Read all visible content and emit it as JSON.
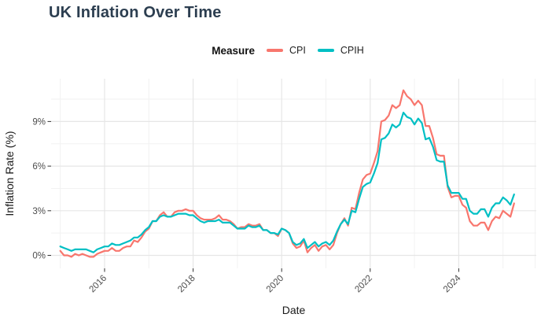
{
  "page": {
    "background": "#FFFFFF"
  },
  "title": {
    "text": "UK Inflation Over Time",
    "color": "#2C3E50"
  },
  "legend": {
    "title": "Measure",
    "position": "top",
    "items": [
      {
        "label": "CPI",
        "color": "#F8766D"
      },
      {
        "label": "CPIH",
        "color": "#00BFC4"
      }
    ]
  },
  "axes": {
    "tick_color": "#333333",
    "tick_label_color": "#4D4D4D",
    "axis_title_color": "#1A1A1A",
    "grid_major_color": "#E6E6E6",
    "grid_minor_color": "#F2F2F2"
  },
  "chart_data": {
    "type": "line",
    "title": "UK Inflation Over Time",
    "xlabel": "Date",
    "ylabel": "Inflation Rate (%)",
    "x_start": "2015-01",
    "x_interval": "monthly",
    "x_end": "2025-04",
    "x_ticks": {
      "major": [
        2016,
        2018,
        2020,
        2022,
        2024
      ],
      "minor": [
        2015,
        2017,
        2019,
        2021,
        2023,
        2025
      ]
    },
    "y_ticks": {
      "major": [
        0,
        3,
        6,
        9
      ],
      "minor": [
        1.5,
        4.5,
        7.5,
        10.5
      ],
      "labels": [
        "0%",
        "3%",
        "6%",
        "9%"
      ]
    },
    "ylim": [
      -0.8,
      11.9
    ],
    "grid": true,
    "legend_position": "top",
    "series": [
      {
        "name": "CPI",
        "color": "#F8766D",
        "values": [
          0.3,
          0.0,
          0.0,
          -0.1,
          0.1,
          0.0,
          0.1,
          0.0,
          -0.1,
          -0.1,
          0.1,
          0.2,
          0.3,
          0.3,
          0.5,
          0.3,
          0.3,
          0.5,
          0.6,
          0.6,
          1.0,
          0.9,
          1.2,
          1.6,
          1.8,
          2.3,
          2.3,
          2.7,
          2.9,
          2.6,
          2.6,
          2.9,
          3.0,
          3.0,
          3.1,
          3.0,
          3.0,
          2.7,
          2.5,
          2.4,
          2.4,
          2.4,
          2.5,
          2.7,
          2.4,
          2.4,
          2.3,
          2.1,
          1.8,
          1.9,
          1.9,
          2.1,
          2.0,
          2.0,
          2.1,
          1.7,
          1.7,
          1.5,
          1.5,
          1.3,
          1.8,
          1.7,
          1.5,
          0.8,
          0.5,
          0.6,
          1.0,
          0.2,
          0.5,
          0.7,
          0.3,
          0.6,
          0.7,
          0.4,
          0.7,
          1.5,
          2.1,
          2.5,
          2.0,
          3.2,
          3.1,
          4.2,
          5.1,
          5.4,
          5.5,
          6.2,
          7.0,
          9.0,
          9.1,
          9.4,
          10.1,
          9.9,
          10.1,
          11.1,
          10.7,
          10.5,
          10.1,
          10.4,
          10.1,
          8.7,
          8.7,
          7.9,
          6.8,
          6.7,
          6.7,
          4.6,
          3.9,
          4.0,
          4.0,
          3.4,
          3.2,
          2.3,
          2.0,
          2.0,
          2.2,
          2.2,
          1.7,
          2.3,
          2.6,
          2.5,
          3.0,
          2.8,
          2.6,
          3.5
        ]
      },
      {
        "name": "CPIH",
        "color": "#00BFC4",
        "values": [
          0.6,
          0.5,
          0.4,
          0.3,
          0.4,
          0.4,
          0.4,
          0.4,
          0.3,
          0.2,
          0.4,
          0.5,
          0.6,
          0.6,
          0.8,
          0.7,
          0.7,
          0.8,
          0.9,
          1.0,
          1.2,
          1.2,
          1.4,
          1.7,
          1.9,
          2.3,
          2.3,
          2.6,
          2.7,
          2.6,
          2.6,
          2.7,
          2.8,
          2.8,
          2.8,
          2.7,
          2.7,
          2.5,
          2.3,
          2.2,
          2.3,
          2.3,
          2.3,
          2.4,
          2.2,
          2.2,
          2.2,
          2.0,
          1.8,
          1.8,
          1.8,
          2.0,
          1.9,
          1.9,
          2.0,
          1.7,
          1.7,
          1.5,
          1.5,
          1.4,
          1.8,
          1.7,
          1.5,
          0.9,
          0.7,
          0.8,
          1.1,
          0.5,
          0.7,
          0.9,
          0.6,
          0.8,
          0.9,
          0.7,
          1.0,
          1.6,
          2.1,
          2.4,
          2.1,
          3.0,
          2.9,
          3.8,
          4.6,
          4.8,
          4.9,
          5.5,
          6.2,
          7.8,
          7.9,
          8.2,
          8.8,
          8.6,
          8.8,
          9.6,
          9.3,
          9.2,
          8.8,
          9.2,
          8.9,
          7.8,
          7.9,
          7.3,
          6.4,
          6.3,
          6.3,
          4.7,
          4.2,
          4.2,
          4.2,
          3.8,
          3.8,
          3.0,
          2.8,
          2.8,
          3.1,
          3.1,
          2.6,
          3.2,
          3.5,
          3.5,
          3.9,
          3.7,
          3.4,
          4.1
        ]
      }
    ]
  }
}
